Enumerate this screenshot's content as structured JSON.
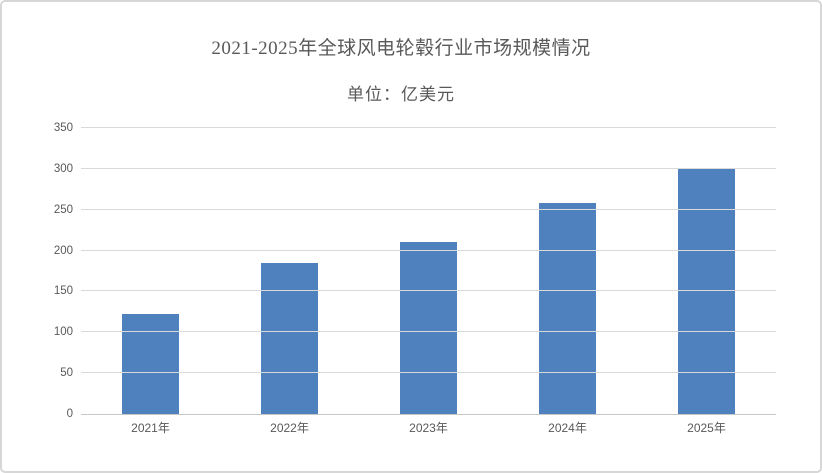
{
  "frame": {
    "background": "#ffffff",
    "border_color": "#d7d7d7"
  },
  "chart_data": {
    "type": "bar",
    "title": "2021-2025年全球风电轮毂行业市场规模情况",
    "subtitle": "单位：亿美元",
    "unit": "亿美元",
    "categories": [
      "2021年",
      "2022年",
      "2023年",
      "2024年",
      "2025年"
    ],
    "values": [
      122,
      185,
      210,
      258,
      300
    ],
    "xlabel": "",
    "ylabel": "",
    "ylim": [
      0,
      350
    ],
    "yticks": [
      0,
      50,
      100,
      150,
      200,
      250,
      300,
      350
    ],
    "grid": true,
    "legend_position": "none",
    "colors": {
      "bar": "#4e81bd",
      "gridline": "#d9d9d9",
      "axis_line": "#c8c8c8",
      "text": "#595959"
    }
  }
}
